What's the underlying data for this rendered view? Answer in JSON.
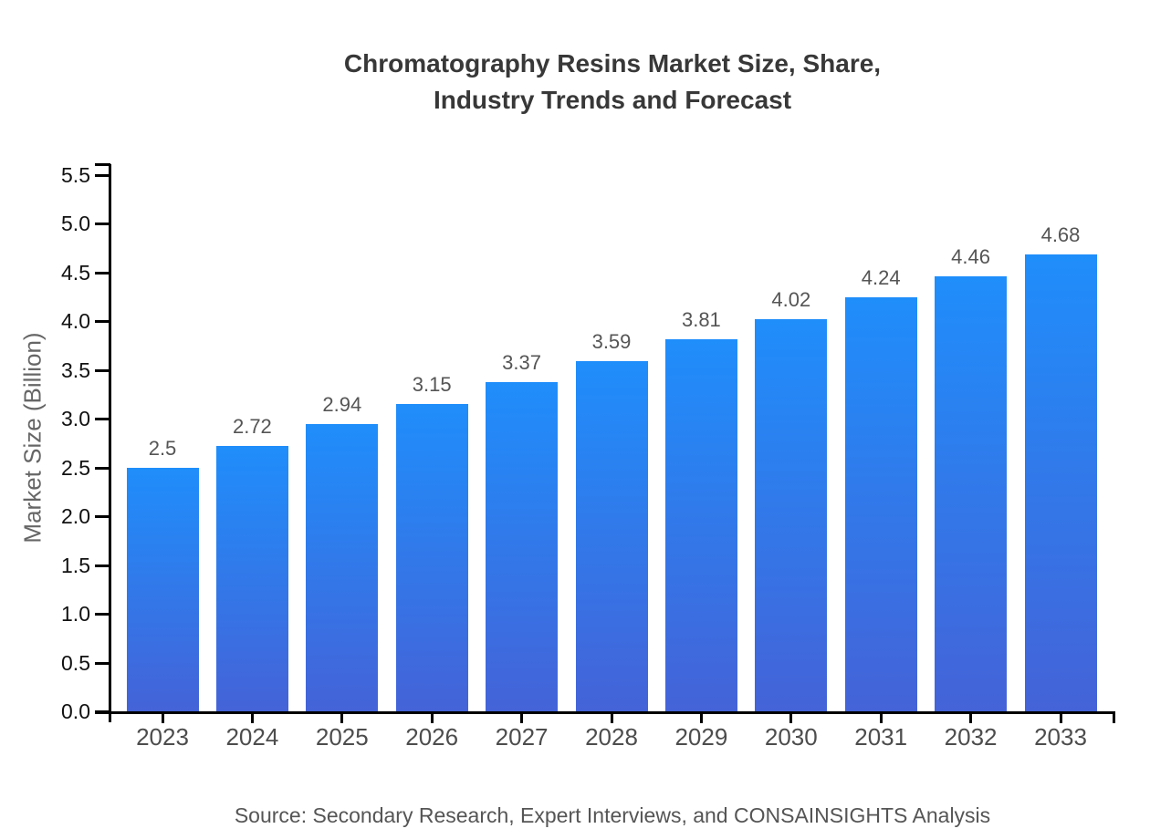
{
  "header": {
    "title_line1": "Chromatography Resins Market Size, Share,",
    "title_line2": "Industry Trends and Forecast"
  },
  "footer": {
    "source": "Source: Secondary Research, Expert Interviews, and CONSAINSIGHTS Analysis"
  },
  "chart_data": {
    "type": "bar",
    "title": "Chromatography Resins Market Size, Share, Industry Trends and Forecast",
    "categories": [
      "2023",
      "2024",
      "2025",
      "2026",
      "2027",
      "2028",
      "2029",
      "2030",
      "2031",
      "2032",
      "2033"
    ],
    "values": [
      2.5,
      2.72,
      2.94,
      3.15,
      3.37,
      3.59,
      3.81,
      4.02,
      4.24,
      4.46,
      4.68
    ],
    "value_labels": [
      "2.5",
      "2.72",
      "2.94",
      "3.15",
      "3.37",
      "3.59",
      "3.81",
      "4.02",
      "4.24",
      "4.46",
      "4.68"
    ],
    "xlabel": "",
    "ylabel": "Market Size (Billion)",
    "ylim": [
      0,
      5.5
    ],
    "ytick_labels": [
      "0.0",
      "0.5",
      "1.0",
      "1.5",
      "2.0",
      "2.5",
      "3.0",
      "3.5",
      "4.0",
      "4.5",
      "5.0",
      "5.5"
    ],
    "grid": false,
    "legend_position": "none",
    "colors": {
      "bar_gradient_top": "#1f8efb",
      "bar_gradient_bottom": "#4463d8",
      "axis": "#000000",
      "title": "#383838",
      "y_tick_label": "#111111",
      "x_tick_label": "#4d4d4d",
      "bar_value_label": "#555555",
      "y_axis_title": "#666666",
      "source_text": "#555555",
      "background": "#ffffff"
    }
  }
}
